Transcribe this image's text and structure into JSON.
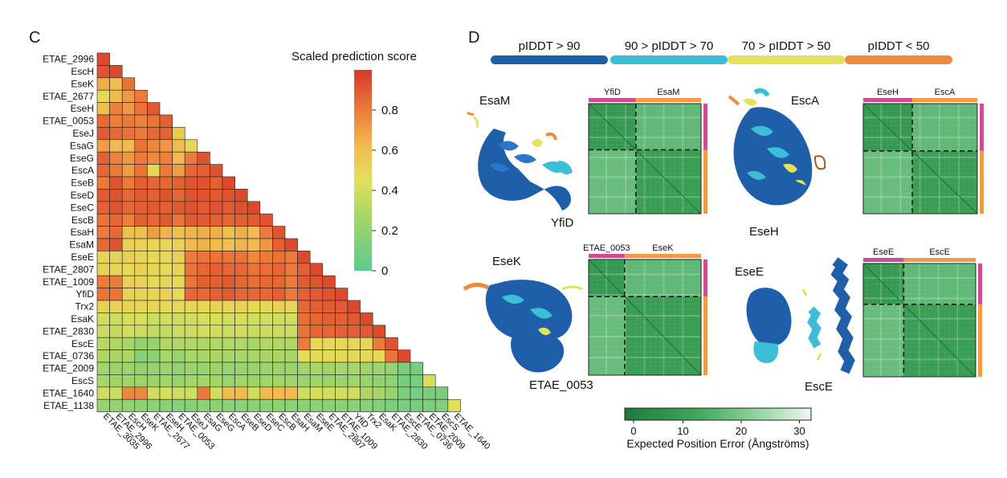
{
  "panels": {
    "c_letter": "C",
    "d_letter": "D"
  },
  "chart_data": [
    {
      "type": "heatmap",
      "title": "Scaled prediction score",
      "row_labels": [
        "ETAE_2996",
        "EscH",
        "EseK",
        "ETAE_2677",
        "EseH",
        "ETAE_0053",
        "EseJ",
        "EsaG",
        "EseG",
        "EscA",
        "EseB",
        "EseD",
        "EseC",
        "EscB",
        "EsaH",
        "EsaM",
        "EseE",
        "ETAE_2807",
        "ETAE_1009",
        "YfiD",
        "Trx2",
        "EsaK",
        "ETAE_2830",
        "EscE",
        "ETAE_0736",
        "ETAE_2009",
        "EscS",
        "ETAE_1640",
        "ETAE_1138"
      ],
      "col_labels": [
        "ETAE_3035",
        "ETAE_2996",
        "EscH",
        "EseK",
        "ETAE_2677",
        "EseH",
        "ETAE_0053",
        "EseJ",
        "EsaG",
        "EseG",
        "EscA",
        "EseB",
        "EseD",
        "EseC",
        "EscB",
        "EsaH",
        "EsaM",
        "EseE",
        "ETAE_2807",
        "ETAE_1009",
        "YfiD",
        "Trx2",
        "EsaK",
        "ETAE_2830",
        "EscE",
        "ETAE_0736",
        "ETAE_2009",
        "EscS",
        "ETAE_1640"
      ],
      "values": [
        [
          0.95
        ],
        [
          0.92,
          0.95
        ],
        [
          0.66,
          0.62,
          0.82
        ],
        [
          0.48,
          0.62,
          0.72,
          0.8
        ],
        [
          0.6,
          0.78,
          0.72,
          0.82,
          0.9
        ],
        [
          0.85,
          0.78,
          0.8,
          0.78,
          0.82,
          0.88
        ],
        [
          0.9,
          0.85,
          0.82,
          0.8,
          0.86,
          0.88,
          0.55
        ],
        [
          0.7,
          0.62,
          0.62,
          0.82,
          0.76,
          0.72,
          0.62,
          0.5
        ],
        [
          0.88,
          0.78,
          0.72,
          0.8,
          0.76,
          0.78,
          0.62,
          0.8,
          0.92
        ],
        [
          0.86,
          0.8,
          0.7,
          0.82,
          0.5,
          0.8,
          0.7,
          0.86,
          0.88,
          0.92
        ],
        [
          0.8,
          0.92,
          0.8,
          0.88,
          0.86,
          0.86,
          0.88,
          0.92,
          0.92,
          0.88,
          0.95
        ],
        [
          0.9,
          0.92,
          0.86,
          0.9,
          0.88,
          0.92,
          0.86,
          0.92,
          0.92,
          0.9,
          0.92,
          0.95
        ],
        [
          0.88,
          0.92,
          0.86,
          0.88,
          0.9,
          0.88,
          0.9,
          0.92,
          0.9,
          0.92,
          0.9,
          0.92,
          0.95
        ],
        [
          0.82,
          0.86,
          0.78,
          0.88,
          0.86,
          0.9,
          0.82,
          0.9,
          0.9,
          0.88,
          0.86,
          0.88,
          0.9,
          0.92
        ],
        [
          0.8,
          0.85,
          0.6,
          0.6,
          0.7,
          0.64,
          0.6,
          0.64,
          0.66,
          0.66,
          0.6,
          0.66,
          0.62,
          0.8,
          0.92
        ],
        [
          0.86,
          0.92,
          0.52,
          0.52,
          0.5,
          0.5,
          0.52,
          0.62,
          0.64,
          0.62,
          0.6,
          0.64,
          0.62,
          0.72,
          0.88,
          0.95
        ],
        [
          0.5,
          0.52,
          0.52,
          0.5,
          0.48,
          0.48,
          0.52,
          0.8,
          0.82,
          0.82,
          0.82,
          0.82,
          0.76,
          0.8,
          0.82,
          0.8,
          0.95
        ],
        [
          0.52,
          0.5,
          0.48,
          0.52,
          0.5,
          0.48,
          0.5,
          0.82,
          0.86,
          0.88,
          0.86,
          0.86,
          0.82,
          0.84,
          0.86,
          0.8,
          0.88,
          0.95
        ],
        [
          0.8,
          0.8,
          0.52,
          0.52,
          0.48,
          0.5,
          0.48,
          0.82,
          0.88,
          0.88,
          0.9,
          0.86,
          0.84,
          0.86,
          0.86,
          0.8,
          0.9,
          0.92,
          0.95
        ],
        [
          0.82,
          0.82,
          0.52,
          0.5,
          0.5,
          0.52,
          0.48,
          0.86,
          0.86,
          0.88,
          0.9,
          0.86,
          0.86,
          0.86,
          0.88,
          0.8,
          0.88,
          0.9,
          0.92,
          0.95
        ],
        [
          0.52,
          0.52,
          0.5,
          0.5,
          0.5,
          0.48,
          0.48,
          0.5,
          0.5,
          0.52,
          0.5,
          0.52,
          0.48,
          0.5,
          0.52,
          0.48,
          0.86,
          0.88,
          0.9,
          0.9,
          0.95
        ],
        [
          0.4,
          0.38,
          0.42,
          0.42,
          0.38,
          0.4,
          0.38,
          0.4,
          0.42,
          0.42,
          0.4,
          0.42,
          0.4,
          0.4,
          0.4,
          0.4,
          0.84,
          0.86,
          0.88,
          0.88,
          0.9,
          0.95
        ],
        [
          0.38,
          0.36,
          0.4,
          0.38,
          0.36,
          0.36,
          0.38,
          0.38,
          0.4,
          0.4,
          0.38,
          0.4,
          0.38,
          0.38,
          0.38,
          0.38,
          0.82,
          0.86,
          0.86,
          0.88,
          0.88,
          0.9,
          0.95
        ],
        [
          0.32,
          0.3,
          0.28,
          0.2,
          0.22,
          0.3,
          0.3,
          0.3,
          0.3,
          0.3,
          0.3,
          0.3,
          0.28,
          0.3,
          0.3,
          0.3,
          0.8,
          0.48,
          0.48,
          0.5,
          0.5,
          0.5,
          0.8,
          0.92
        ],
        [
          0.3,
          0.28,
          0.3,
          0.16,
          0.18,
          0.28,
          0.22,
          0.28,
          0.28,
          0.28,
          0.28,
          0.28,
          0.28,
          0.28,
          0.28,
          0.28,
          0.46,
          0.48,
          0.48,
          0.48,
          0.48,
          0.48,
          0.48,
          0.82,
          0.95
        ],
        [
          0.26,
          0.24,
          0.24,
          0.2,
          0.22,
          0.24,
          0.2,
          0.24,
          0.22,
          0.24,
          0.22,
          0.24,
          0.22,
          0.24,
          0.24,
          0.24,
          0.26,
          0.28,
          0.26,
          0.28,
          0.28,
          0.26,
          0.26,
          0.22,
          0.12,
          0.1
        ],
        [
          0.28,
          0.26,
          0.26,
          0.24,
          0.24,
          0.26,
          0.22,
          0.26,
          0.26,
          0.26,
          0.24,
          0.26,
          0.24,
          0.26,
          0.26,
          0.26,
          0.24,
          0.26,
          0.24,
          0.24,
          0.26,
          0.22,
          0.2,
          0.18,
          0.1,
          0.1,
          0.42
        ],
        [
          0.4,
          0.38,
          0.76,
          0.76,
          0.4,
          0.42,
          0.4,
          0.4,
          0.8,
          0.4,
          0.62,
          0.62,
          0.4,
          0.62,
          0.62,
          0.62,
          0.4,
          0.42,
          0.4,
          0.4,
          0.4,
          0.3,
          0.28,
          0.22,
          0.12,
          0.1,
          0.12,
          0.12
        ],
        [
          0.22,
          0.2,
          0.2,
          0.18,
          0.18,
          0.18,
          0.16,
          0.16,
          0.18,
          0.18,
          0.18,
          0.18,
          0.18,
          0.18,
          0.18,
          0.18,
          0.18,
          0.18,
          0.18,
          0.18,
          0.18,
          0.16,
          0.14,
          0.12,
          0.1,
          0.1,
          0.12,
          0.14,
          0.45
        ]
      ],
      "colorbar": {
        "ticks": [
          "0",
          "0.2",
          "0.4",
          "0.6",
          "0.8"
        ],
        "range": [
          0,
          1
        ]
      }
    },
    {
      "type": "heatmap",
      "title": "Expected Position Error (Ångströms)",
      "colorbar": {
        "ticks": [
          "0",
          "10",
          "20",
          "30"
        ],
        "range": [
          0,
          32
        ]
      }
    }
  ],
  "plddt_legend": [
    {
      "label": "pIDDT > 90",
      "color": "#1f5ea8"
    },
    {
      "label": "90 > pIDDT > 70",
      "color": "#3cbfd6"
    },
    {
      "label": "70 > pIDDT > 50",
      "color": "#e3e25a"
    },
    {
      "label": "pIDDT < 50",
      "color": "#ee8a3e"
    }
  ],
  "complexes": [
    {
      "label_a": "EsaM",
      "label_b": "YfiD",
      "chain_a": "YfiD",
      "chain_b": "EsaM",
      "frac_a": 0.42
    },
    {
      "label_a": "EscA",
      "label_b": "EseH",
      "chain_a": "EseH",
      "chain_b": "EscA",
      "frac_a": 0.43
    },
    {
      "label_a": "EseK",
      "label_b": "ETAE_0053",
      "chain_a": "ETAE_0053",
      "chain_b": "EseK",
      "frac_a": 0.32
    },
    {
      "label_a": "EseE",
      "label_b": "EscE",
      "chain_a": "EseE",
      "chain_b": "EscE",
      "frac_a": 0.36
    }
  ]
}
